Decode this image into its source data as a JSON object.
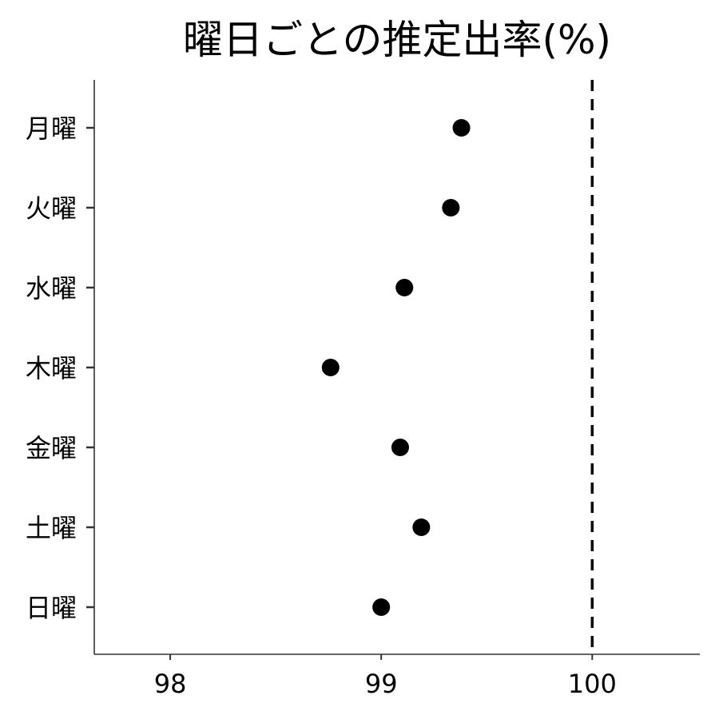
{
  "chart_data": {
    "type": "scatter",
    "title": "曜日ごとの推定出率(%)",
    "xlabel": "",
    "ylabel": "",
    "xlim": [
      97.64,
      100.51
    ],
    "xticks": [
      98,
      99,
      100
    ],
    "xtick_labels": [
      "98",
      "99",
      "100"
    ],
    "categories": [
      "月曜",
      "火曜",
      "水曜",
      "木曜",
      "金曜",
      "土曜",
      "日曜"
    ],
    "values": [
      99.38,
      99.33,
      99.11,
      98.76,
      99.09,
      99.19,
      99.0
    ],
    "reference_line": {
      "x": 100,
      "style": "dashed"
    },
    "grid": false,
    "legend": "none",
    "point_color": "#000000",
    "axis_color": "#333333"
  }
}
